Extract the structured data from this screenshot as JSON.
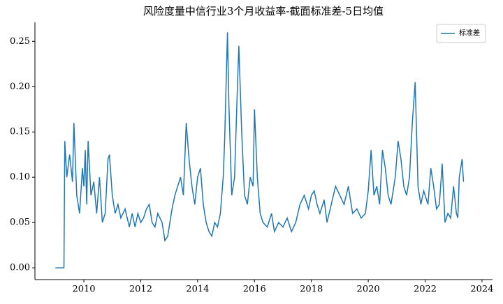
{
  "chart_data": {
    "type": "line",
    "title": "风险度量中信行业3个月收益率-截面标准差-5日均值",
    "x": [
      2009.0,
      2009.3,
      2009.33,
      2009.4,
      2009.5,
      2009.6,
      2009.65,
      2009.75,
      2009.85,
      2009.95,
      2010.0,
      2010.05,
      2010.1,
      2010.15,
      2010.25,
      2010.35,
      2010.45,
      2010.55,
      2010.65,
      2010.75,
      2010.85,
      2010.9,
      2011.0,
      2011.1,
      2011.2,
      2011.3,
      2011.45,
      2011.6,
      2011.7,
      2011.8,
      2011.9,
      2012.0,
      2012.1,
      2012.2,
      2012.3,
      2012.4,
      2012.5,
      2012.6,
      2012.75,
      2012.85,
      2012.95,
      2013.0,
      2013.1,
      2013.2,
      2013.3,
      2013.4,
      2013.5,
      2013.6,
      2013.7,
      2013.8,
      2013.9,
      2014.0,
      2014.1,
      2014.2,
      2014.3,
      2014.4,
      2014.5,
      2014.6,
      2014.7,
      2014.8,
      2014.9,
      2014.95,
      2015.0,
      2015.05,
      2015.1,
      2015.2,
      2015.3,
      2015.4,
      2015.45,
      2015.55,
      2015.65,
      2015.75,
      2015.85,
      2015.95,
      2016.0,
      2016.1,
      2016.2,
      2016.3,
      2016.45,
      2016.6,
      2016.7,
      2016.85,
      2017.0,
      2017.15,
      2017.3,
      2017.45,
      2017.6,
      2017.75,
      2017.9,
      2018.0,
      2018.1,
      2018.2,
      2018.3,
      2018.45,
      2018.55,
      2018.7,
      2018.85,
      2019.0,
      2019.15,
      2019.3,
      2019.45,
      2019.6,
      2019.75,
      2019.9,
      2020.0,
      2020.1,
      2020.2,
      2020.3,
      2020.4,
      2020.5,
      2020.6,
      2020.7,
      2020.8,
      2020.95,
      2021.05,
      2021.15,
      2021.25,
      2021.35,
      2021.45,
      2021.55,
      2021.65,
      2021.75,
      2021.85,
      2021.95,
      2022.1,
      2022.2,
      2022.3,
      2022.4,
      2022.5,
      2022.6,
      2022.7,
      2022.8,
      2022.9,
      2023.0,
      2023.1,
      2023.15,
      2023.2,
      2023.3,
      2023.35
    ],
    "series": [
      {
        "name": "标准差",
        "color": "#1f77b4",
        "values": [
          0,
          0,
          0.14,
          0.1,
          0.125,
          0.095,
          0.16,
          0.08,
          0.06,
          0.11,
          0.09,
          0.13,
          0.07,
          0.14,
          0.08,
          0.095,
          0.06,
          0.1,
          0.05,
          0.06,
          0.12,
          0.125,
          0.08,
          0.06,
          0.07,
          0.055,
          0.065,
          0.045,
          0.06,
          0.045,
          0.06,
          0.05,
          0.055,
          0.065,
          0.07,
          0.05,
          0.045,
          0.06,
          0.05,
          0.03,
          0.035,
          0.045,
          0.065,
          0.08,
          0.09,
          0.1,
          0.08,
          0.16,
          0.12,
          0.09,
          0.07,
          0.1,
          0.11,
          0.07,
          0.05,
          0.04,
          0.035,
          0.05,
          0.045,
          0.06,
          0.1,
          0.14,
          0.2,
          0.26,
          0.18,
          0.08,
          0.1,
          0.2,
          0.245,
          0.15,
          0.08,
          0.07,
          0.1,
          0.09,
          0.175,
          0.1,
          0.06,
          0.05,
          0.045,
          0.06,
          0.04,
          0.05,
          0.045,
          0.055,
          0.04,
          0.05,
          0.07,
          0.08,
          0.065,
          0.08,
          0.085,
          0.07,
          0.06,
          0.075,
          0.05,
          0.07,
          0.09,
          0.08,
          0.07,
          0.09,
          0.06,
          0.065,
          0.055,
          0.06,
          0.085,
          0.13,
          0.08,
          0.09,
          0.07,
          0.13,
          0.11,
          0.08,
          0.07,
          0.1,
          0.14,
          0.12,
          0.09,
          0.08,
          0.1,
          0.16,
          0.205,
          0.09,
          0.07,
          0.085,
          0.07,
          0.11,
          0.09,
          0.065,
          0.07,
          0.115,
          0.05,
          0.06,
          0.055,
          0.09,
          0.06,
          0.055,
          0.1,
          0.12,
          0.095
        ]
      }
    ],
    "xlim": [
      2008.28,
      2024.37
    ],
    "xticks": [
      2010,
      2012,
      2014,
      2016,
      2018,
      2020,
      2022,
      2024
    ],
    "ylim": [
      -0.013,
      0.271
    ],
    "yticks": [
      {
        "value": 0,
        "label": "0.00"
      },
      {
        "value": 0.05,
        "label": "0.05"
      },
      {
        "value": 0.1,
        "label": "0.10"
      },
      {
        "value": 0.15,
        "label": "0.15"
      },
      {
        "value": 0.2,
        "label": "0.20"
      },
      {
        "value": 0.25,
        "label": "0.25"
      }
    ],
    "legend": "upper right"
  }
}
